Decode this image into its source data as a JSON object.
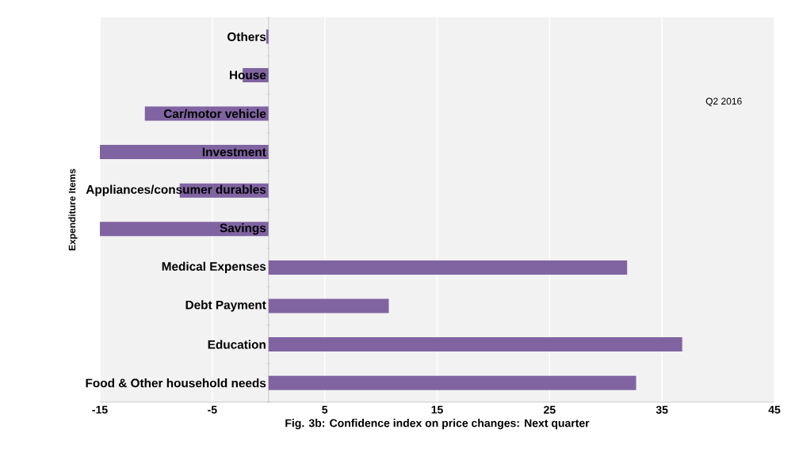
{
  "chart_data": {
    "type": "bar",
    "orientation": "horizontal",
    "xlabel": "Fig. 3b: Confidence index on price changes: Next quarter",
    "ylabel": "Expenditure Items",
    "categories": [
      "Others",
      "House",
      "Car/motor vehicle",
      "Investment",
      "Appliances/consumer durables",
      "Savings",
      "Medical Expenses",
      "Debt Payment",
      "Education",
      "Food & Other household needs"
    ],
    "values": [
      -0.2,
      -2.3,
      -11.0,
      -15,
      -7.9,
      -15,
      31.9,
      10.7,
      36.8,
      32.7
    ],
    "color": "#8064a2",
    "xlim": [
      -15,
      45
    ],
    "xticks": [
      -15,
      -5,
      5,
      15,
      25,
      35,
      45
    ],
    "grid": "x",
    "annotations": [
      "Q2 2016"
    ]
  }
}
